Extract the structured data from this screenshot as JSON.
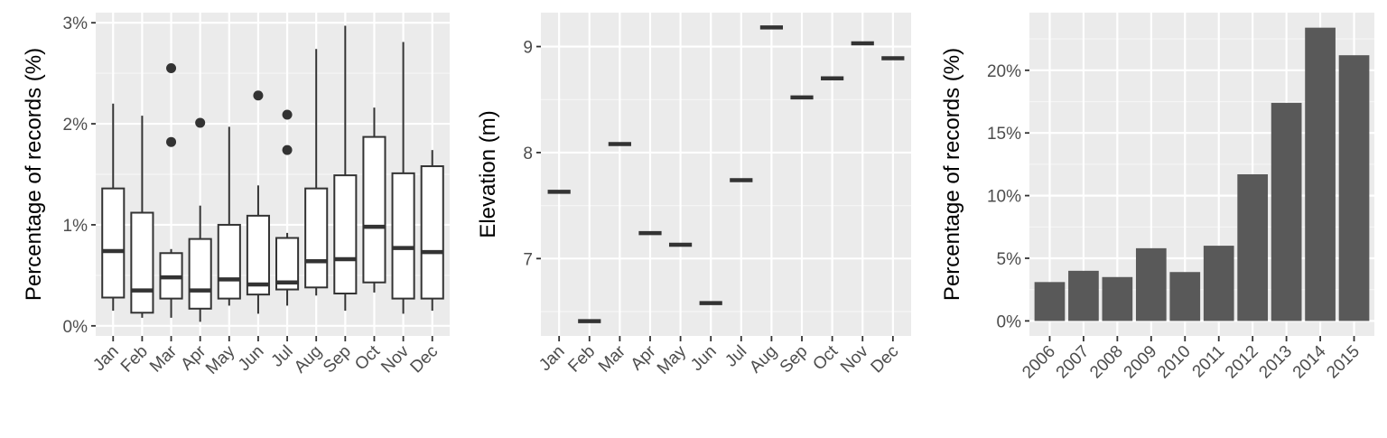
{
  "colors": {
    "panel_background": "#EBEBEB",
    "grid_major": "#FFFFFF",
    "grid_minor": "#F5F5F5",
    "ink": "#333333",
    "bar_fill": "#595959",
    "tick_text": "#4D4D4D"
  },
  "chart_data": [
    {
      "type": "box",
      "title": "",
      "xlabel": "",
      "ylabel": "Percentage of records (%)",
      "categories": [
        "Jan",
        "Feb",
        "Mar",
        "Apr",
        "May",
        "Jun",
        "Jul",
        "Aug",
        "Sep",
        "Oct",
        "Nov",
        "Dec"
      ],
      "ylim": [
        -0.1,
        3.1
      ],
      "yticks": [
        0,
        1,
        2,
        3
      ],
      "ytick_labels": [
        "0%",
        "1%",
        "2%",
        "3%"
      ],
      "boxes": [
        {
          "min": 0.15,
          "q1": 0.28,
          "median": 0.74,
          "q3": 1.36,
          "max": 2.2,
          "outliers": []
        },
        {
          "min": 0.08,
          "q1": 0.13,
          "median": 0.35,
          "q3": 1.12,
          "max": 2.08,
          "outliers": []
        },
        {
          "min": 0.08,
          "q1": 0.27,
          "median": 0.48,
          "q3": 0.72,
          "max": 0.76,
          "outliers": [
            1.82,
            2.55
          ]
        },
        {
          "min": 0.04,
          "q1": 0.17,
          "median": 0.35,
          "q3": 0.86,
          "max": 1.19,
          "outliers": [
            2.01
          ]
        },
        {
          "min": 0.2,
          "q1": 0.27,
          "median": 0.46,
          "q3": 1.0,
          "max": 1.97,
          "outliers": []
        },
        {
          "min": 0.12,
          "q1": 0.31,
          "median": 0.41,
          "q3": 1.09,
          "max": 1.39,
          "outliers": [
            2.28
          ]
        },
        {
          "min": 0.2,
          "q1": 0.36,
          "median": 0.43,
          "q3": 0.87,
          "max": 0.92,
          "outliers": [
            1.74,
            2.09
          ]
        },
        {
          "min": 0.3,
          "q1": 0.38,
          "median": 0.64,
          "q3": 1.36,
          "max": 2.74,
          "outliers": []
        },
        {
          "min": 0.15,
          "q1": 0.32,
          "median": 0.66,
          "q3": 1.49,
          "max": 2.97,
          "outliers": []
        },
        {
          "min": 0.33,
          "q1": 0.43,
          "median": 0.98,
          "q3": 1.87,
          "max": 2.16,
          "outliers": []
        },
        {
          "min": 0.12,
          "q1": 0.27,
          "median": 0.77,
          "q3": 1.51,
          "max": 2.81,
          "outliers": []
        },
        {
          "min": 0.15,
          "q1": 0.27,
          "median": 0.73,
          "q3": 1.58,
          "max": 1.74,
          "outliers": []
        }
      ]
    },
    {
      "type": "box",
      "title": "",
      "xlabel": "",
      "ylabel": "Elevation (m)",
      "categories": [
        "Jan",
        "Feb",
        "Mar",
        "Apr",
        "May",
        "Jun",
        "Jul",
        "Aug",
        "Sep",
        "Oct",
        "Nov",
        "Dec"
      ],
      "ylim": [
        6.27,
        9.32
      ],
      "yticks": [
        7,
        8,
        9
      ],
      "ytick_labels": [
        "7",
        "8",
        "9"
      ],
      "values": [
        7.63,
        6.41,
        8.08,
        7.24,
        7.13,
        6.58,
        7.74,
        9.18,
        8.52,
        8.7,
        9.03,
        8.89
      ]
    },
    {
      "type": "bar",
      "title": "",
      "xlabel": "",
      "ylabel": "Percentage of records (%)",
      "categories": [
        "2006",
        "2007",
        "2008",
        "2009",
        "2010",
        "2011",
        "2012",
        "2013",
        "2014",
        "2015"
      ],
      "values": [
        3.1,
        4.0,
        3.5,
        5.8,
        3.9,
        6.0,
        11.7,
        17.4,
        23.4,
        21.2
      ],
      "ylim": [
        -1.2,
        24.6
      ],
      "yticks": [
        0,
        5,
        10,
        15,
        20
      ],
      "ytick_labels": [
        "0%",
        "5%",
        "10%",
        "15%",
        "20%"
      ]
    }
  ]
}
